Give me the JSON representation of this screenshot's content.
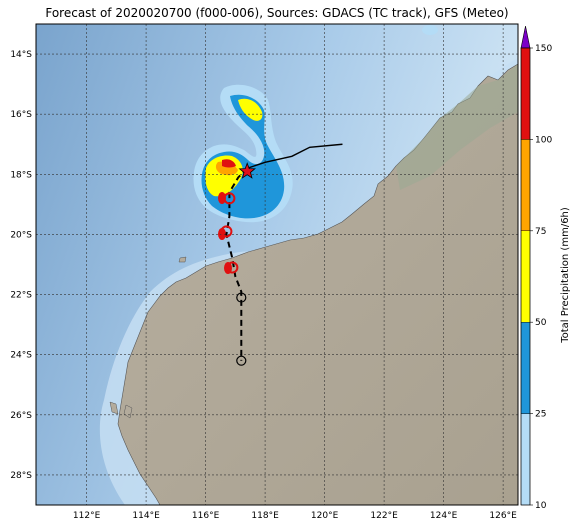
{
  "title": "Forecast of 2020020700 (f000-006), Sources: GDACS (TC track), GFS (Meteo)",
  "lat_labels": [
    "14°S",
    "16°S",
    "18°S",
    "20°S",
    "22°S",
    "24°S",
    "26°S",
    "28°S"
  ],
  "lon_labels": [
    "112°E",
    "114°E",
    "116°E",
    "118°E",
    "120°E",
    "122°E",
    "124°E",
    "126°E"
  ],
  "colorbar": {
    "label": "Total Precipitation (mm/6h)",
    "ticks": [
      "10",
      "25",
      "50",
      "75",
      "100",
      "150"
    ],
    "colors": [
      "#b4dcf6",
      "#1f96da",
      "#ffff00",
      "#ffa500",
      "#e01010",
      "#7b00c8"
    ]
  },
  "colors": {
    "ocean_deep": "#7fa9cf",
    "ocean_shallow": "#c9e2f4",
    "land": "#b3ab9c",
    "land_green": "#9fae96",
    "track": "#000000",
    "storm_marker": "#e0101a"
  },
  "track": {
    "past_lonlat": [
      [
        120.6,
        17.0
      ],
      [
        119.5,
        17.1
      ],
      [
        118.9,
        17.4
      ],
      [
        118.0,
        17.6
      ],
      [
        117.4,
        17.8
      ]
    ],
    "forecast_lonlat": [
      [
        117.4,
        17.8
      ],
      [
        117.1,
        18.1
      ],
      [
        116.8,
        18.6
      ],
      [
        116.8,
        19.4
      ],
      [
        116.7,
        20.0
      ],
      [
        116.9,
        20.8
      ],
      [
        117.0,
        21.4
      ],
      [
        117.2,
        21.9
      ],
      [
        117.2,
        22.4
      ],
      [
        117.2,
        23.2
      ],
      [
        117.2,
        24.2
      ]
    ],
    "cyclone_symbols_lonlat": [
      [
        116.8,
        18.8
      ],
      [
        116.7,
        19.9
      ],
      [
        116.9,
        21.1
      ]
    ],
    "circles_lonlat": [
      [
        117.2,
        22.1
      ],
      [
        117.2,
        24.2
      ]
    ],
    "current_position": [
      117.4,
      17.9
    ]
  }
}
